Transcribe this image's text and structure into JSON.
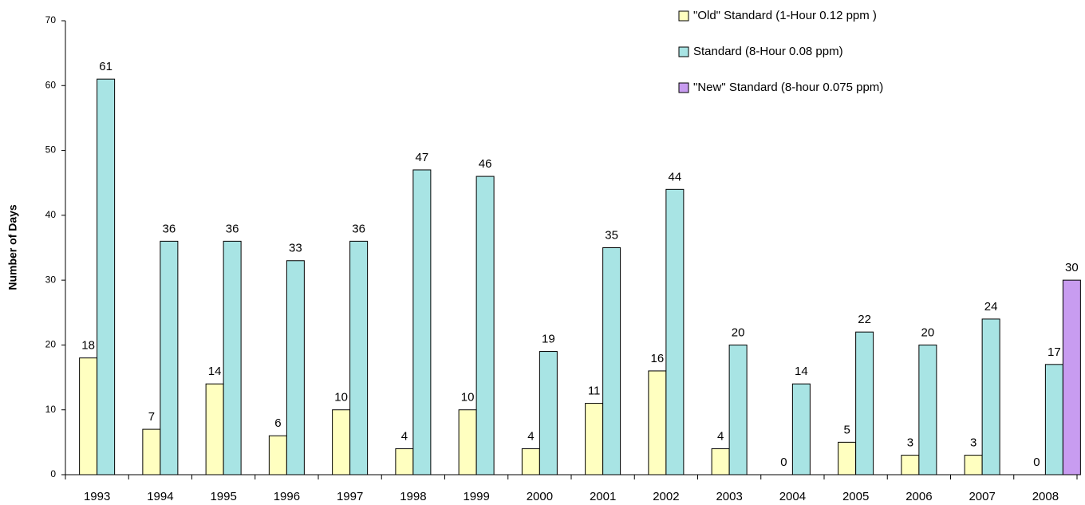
{
  "chart_data": {
    "type": "bar",
    "y_label": "Number of Days",
    "categories": [
      "1993",
      "1994",
      "1995",
      "1996",
      "1997",
      "1998",
      "1999",
      "2000",
      "2001",
      "2002",
      "2003",
      "2004",
      "2005",
      "2006",
      "2007",
      "2008"
    ],
    "series": [
      {
        "name": "\"Old\" Standard (1-Hour 0.12 ppm )",
        "color": "#ffffc0",
        "values": [
          18,
          7,
          14,
          6,
          10,
          4,
          10,
          4,
          11,
          16,
          4,
          0,
          5,
          3,
          3,
          0
        ]
      },
      {
        "name": "Standard (8-Hour 0.08 ppm)",
        "color": "#a8e4e4",
        "values": [
          61,
          36,
          36,
          33,
          36,
          47,
          46,
          19,
          35,
          44,
          20,
          14,
          22,
          20,
          24,
          17
        ]
      },
      {
        "name": "\"New\" Standard (8-hour 0.075 ppm)",
        "color": "#c89cf0",
        "values": [
          null,
          null,
          null,
          null,
          null,
          null,
          null,
          null,
          null,
          null,
          null,
          null,
          null,
          null,
          null,
          30
        ]
      }
    ],
    "ylim": [
      0,
      70
    ],
    "yticks": [
      0,
      10,
      20,
      30,
      40,
      50,
      60,
      70
    ],
    "grid": false,
    "legend": "top-right"
  }
}
